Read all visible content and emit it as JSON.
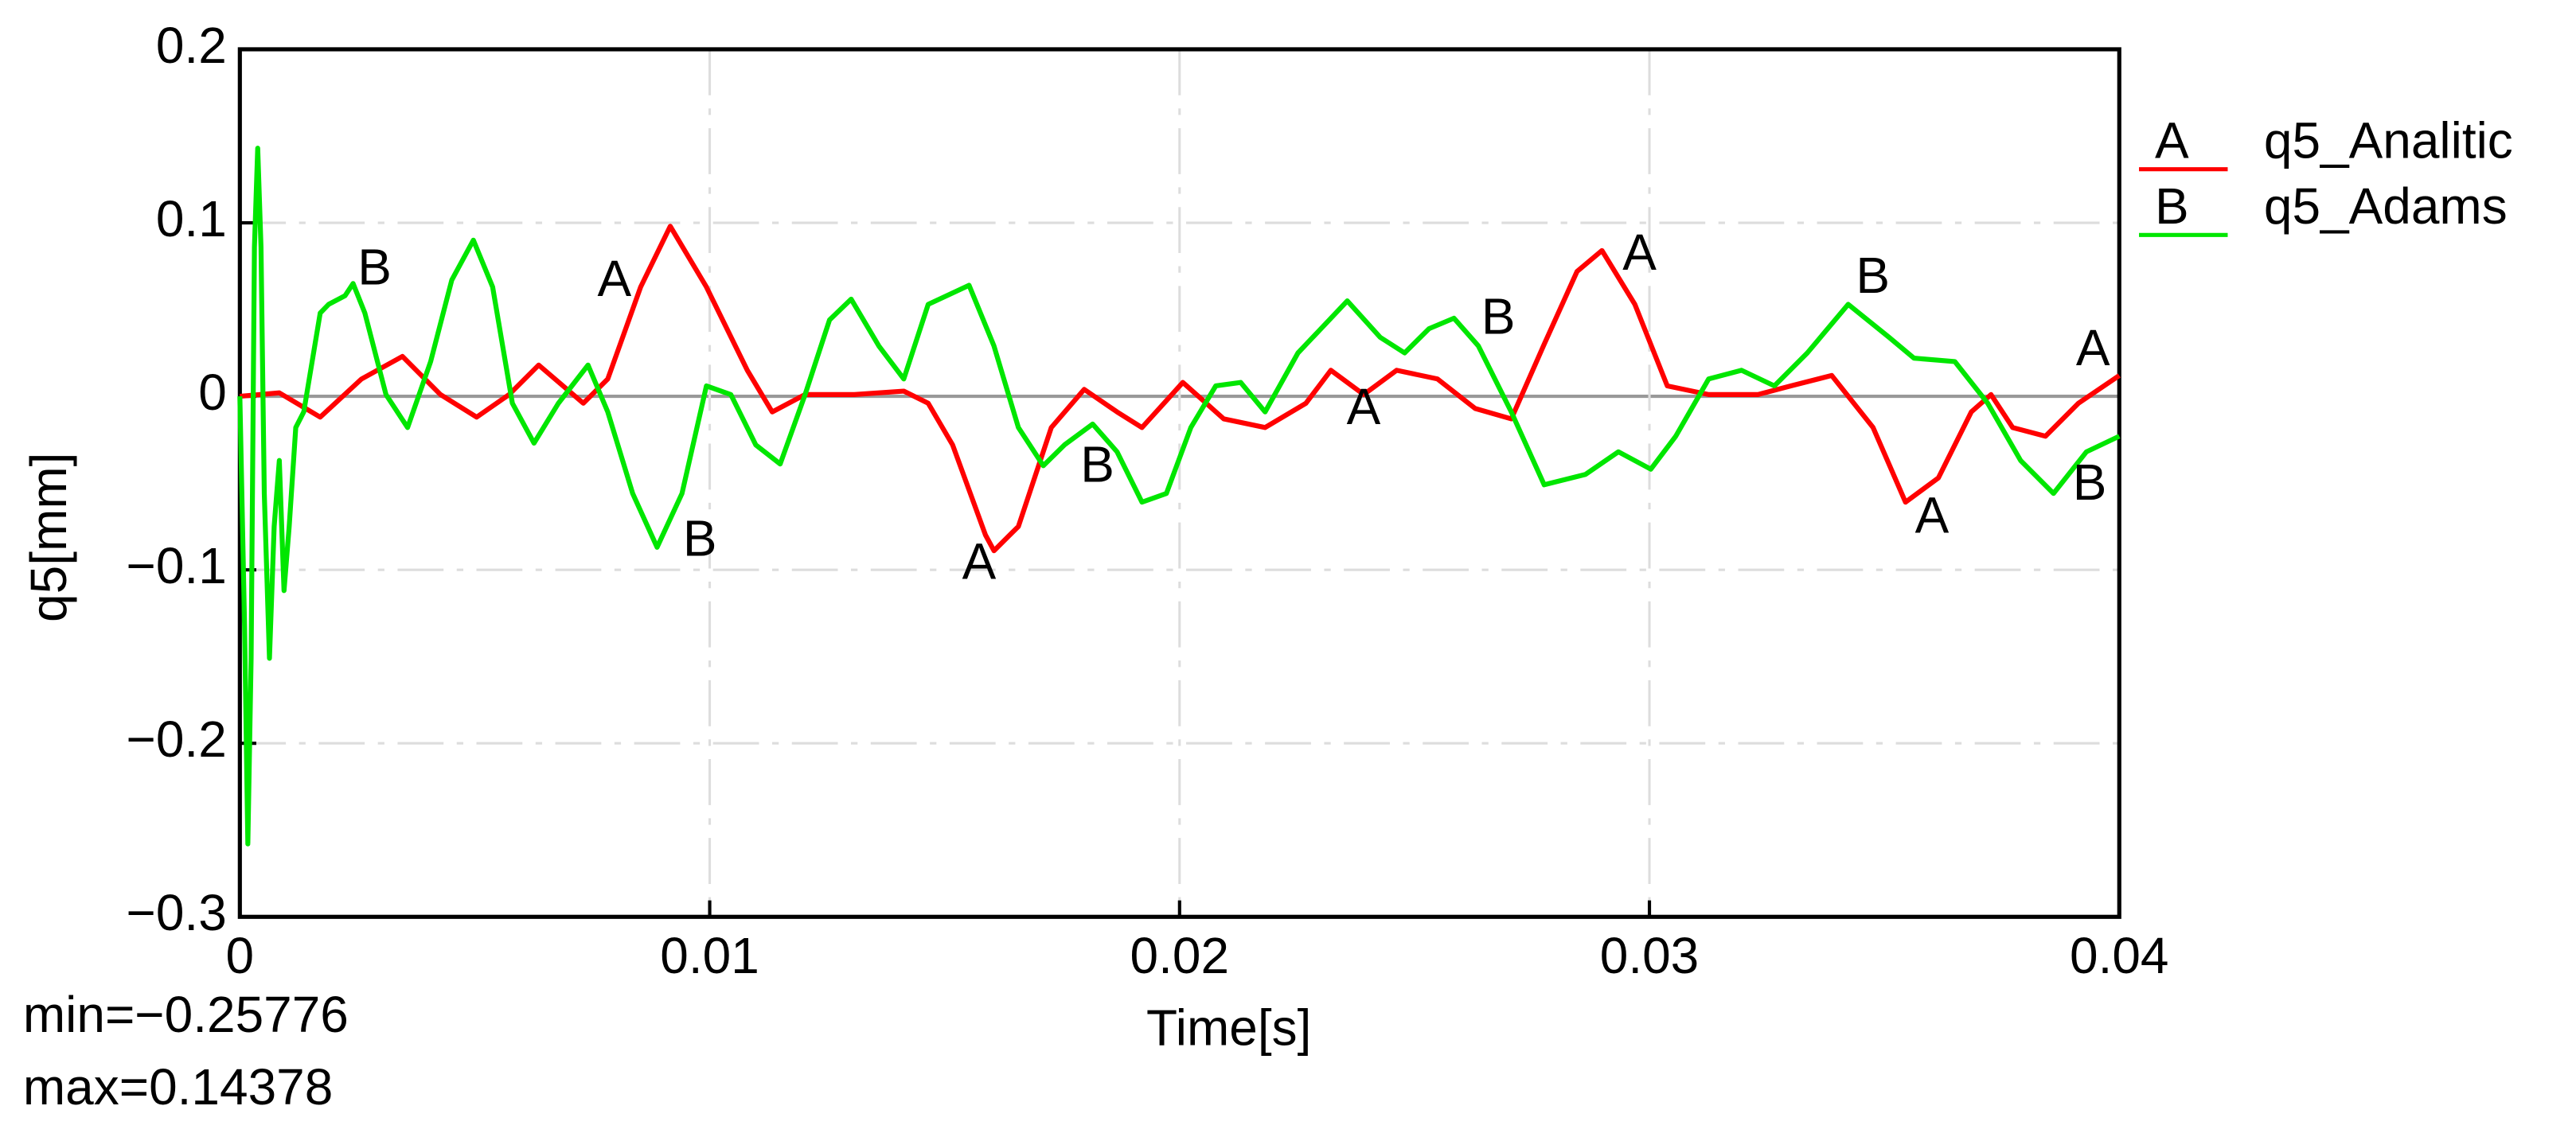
{
  "chart_data": {
    "type": "line",
    "xlabel": "Time[s]",
    "ylabel": "q5[mm]",
    "xlim": [
      0,
      0.04
    ],
    "xticks": [
      0,
      0.01,
      0.02,
      0.03,
      0.04
    ],
    "ylim": [
      -0.3,
      0.2
    ],
    "yticks": [
      0.2,
      0.1,
      0,
      {
        "value": -0.1,
        "label": "−0.1"
      },
      {
        "value": -0.2,
        "label": "−0.2"
      },
      {
        "value": -0.3,
        "label": "−0.3"
      }
    ],
    "grid": true,
    "legend": "right",
    "annotations": [
      "min=−0.25776",
      "max=0.14378"
    ],
    "series": [
      {
        "name": "q5_Analitic",
        "label": "A",
        "color": "#ff0000",
        "x": [
          0,
          0.00084,
          0.00171,
          0.00259,
          0.00346,
          0.00427,
          0.00504,
          0.00573,
          0.00636,
          0.00731,
          0.00783,
          0.00853,
          0.00916,
          0.00993,
          0.0108,
          0.01133,
          0.01203,
          0.01308,
          0.01413,
          0.01465,
          0.01517,
          0.01587,
          0.01605,
          0.01657,
          0.01727,
          0.01797,
          0.01867,
          0.0192,
          0.02007,
          0.02094,
          0.02182,
          0.02269,
          0.02322,
          0.02392,
          0.02462,
          0.02549,
          0.02629,
          0.02706,
          0.02776,
          0.02846,
          0.02899,
          0.02969,
          0.03038,
          0.03126,
          0.03231,
          0.03301,
          0.03388,
          0.03476,
          0.03545,
          0.03615,
          0.03685,
          0.03727,
          0.03773,
          0.03843,
          0.03913,
          0.04
        ],
        "values": [
          0,
          0.002,
          -0.012,
          0.01,
          0.023,
          0.001,
          -0.012,
          0.001,
          0.018,
          -0.004,
          0.01,
          0.063,
          0.098,
          0.063,
          0.015,
          -0.009,
          0.001,
          0.001,
          0.003,
          -0.004,
          -0.028,
          -0.08,
          -0.089,
          -0.075,
          -0.018,
          0.004,
          -0.009,
          -0.018,
          0.008,
          -0.013,
          -0.018,
          -0.004,
          0.015,
          0.001,
          0.015,
          0.01,
          -0.007,
          -0.013,
          0.03,
          0.072,
          0.084,
          0.053,
          0.006,
          0.001,
          0.001,
          0.006,
          0.012,
          -0.018,
          -0.061,
          -0.047,
          -0.009,
          0.001,
          -0.018,
          -0.023,
          -0.004,
          0.012
        ]
      },
      {
        "name": "q5_Adams",
        "label": "B",
        "color": "#00e600",
        "x": [
          0,
          0.0001,
          0.00017,
          0.00024,
          0.00031,
          0.00038,
          0.00045,
          0.00052,
          0.00063,
          0.00073,
          0.00084,
          0.00094,
          0.00105,
          0.00119,
          0.00136,
          0.00171,
          0.00189,
          0.00224,
          0.00241,
          0.00266,
          0.00311,
          0.00357,
          0.00406,
          0.00451,
          0.00497,
          0.00538,
          0.0058,
          0.00626,
          0.00678,
          0.00741,
          0.00783,
          0.00836,
          0.00888,
          0.00941,
          0.00993,
          0.01045,
          0.01098,
          0.0115,
          0.01203,
          0.01255,
          0.01301,
          0.0136,
          0.01413,
          0.01465,
          0.01552,
          0.01605,
          0.01657,
          0.0171,
          0.01755,
          0.01815,
          0.01867,
          0.0192,
          0.01972,
          0.02024,
          0.02077,
          0.0213,
          0.02182,
          0.02252,
          0.02357,
          0.02427,
          0.02479,
          0.02531,
          0.02584,
          0.02636,
          0.02706,
          0.02776,
          0.02864,
          0.02934,
          0.03003,
          0.03056,
          0.03126,
          0.03196,
          0.03266,
          0.03336,
          0.03423,
          0.0351,
          0.03563,
          0.0365,
          0.0372,
          0.0379,
          0.0386,
          0.0393,
          0.04
        ],
        "values": [
          0,
          -0.132,
          -0.258,
          -0.151,
          0.086,
          0.143,
          0.086,
          -0.056,
          -0.151,
          -0.075,
          -0.037,
          -0.112,
          -0.075,
          -0.018,
          -0.009,
          0.048,
          0.053,
          0.058,
          0.065,
          0.048,
          0.001,
          -0.018,
          0.02,
          0.067,
          0.09,
          0.063,
          -0.004,
          -0.027,
          -0.004,
          0.018,
          -0.009,
          -0.056,
          -0.087,
          -0.056,
          0.006,
          0.001,
          -0.028,
          -0.039,
          0.001,
          0.044,
          0.056,
          0.029,
          0.01,
          0.053,
          0.064,
          0.029,
          -0.018,
          -0.04,
          -0.028,
          -0.016,
          -0.032,
          -0.061,
          -0.056,
          -0.018,
          0.006,
          0.008,
          -0.009,
          0.025,
          0.055,
          0.034,
          0.025,
          0.039,
          0.045,
          0.029,
          -0.009,
          -0.051,
          -0.045,
          -0.032,
          -0.042,
          -0.023,
          0.01,
          0.015,
          0.006,
          0.025,
          0.053,
          0.034,
          0.022,
          0.02,
          -0.004,
          -0.037,
          -0.056,
          -0.032,
          -0.023
        ]
      }
    ]
  }
}
